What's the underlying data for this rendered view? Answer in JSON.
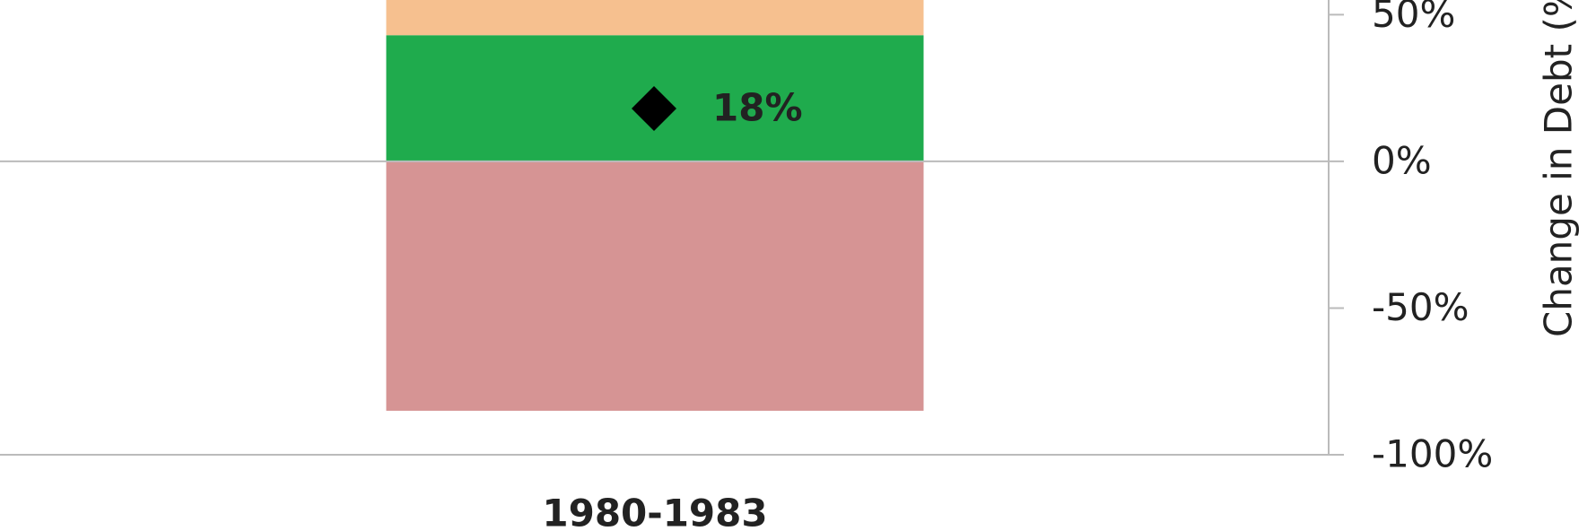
{
  "chart_data": {
    "type": "bar",
    "stacked": true,
    "categories": [
      "1980-1983"
    ],
    "series": [
      {
        "color": "#1fab4d",
        "values": [
          43
        ]
      },
      {
        "color": "#f6c08f",
        "values": [
          20
        ]
      },
      {
        "color": "#d69494",
        "values": [
          -85
        ]
      }
    ],
    "markers": {
      "color": "#000000",
      "values": [
        18
      ],
      "value_labels": [
        "18%"
      ]
    },
    "y_axis_label": "Change in Debt (%)",
    "y_axis_side": "right",
    "ylim": [
      -100,
      55
    ],
    "yticks": [
      {
        "value": -100,
        "label": "-100%"
      },
      {
        "value": -50,
        "label": "-50%"
      },
      {
        "value": 0,
        "label": "0%"
      },
      {
        "value": 50,
        "label": "50%"
      }
    ]
  }
}
